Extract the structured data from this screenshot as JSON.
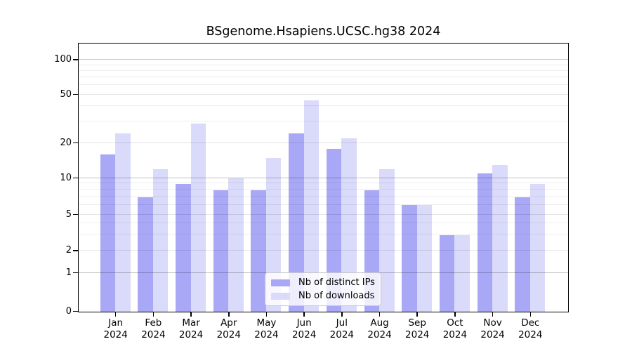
{
  "title": "BSgenome.Hsapiens.UCSC.hg38 2024",
  "chart_data": {
    "type": "bar",
    "title": "BSgenome.Hsapiens.UCSC.hg38 2024",
    "categories": [
      "Jan",
      "Feb",
      "Mar",
      "Apr",
      "May",
      "Jun",
      "Jul",
      "Aug",
      "Sep",
      "Oct",
      "Nov",
      "Dec"
    ],
    "x_year_label": "2024",
    "series": [
      {
        "name": "Nb of distinct IPs",
        "color": "#a8a8f6",
        "values": [
          16,
          7,
          9,
          8,
          8,
          24,
          18,
          8,
          6,
          3,
          11,
          7
        ]
      },
      {
        "name": "Nb of downloads",
        "color": "#dadafa",
        "values": [
          24,
          12,
          29,
          10,
          15,
          45,
          22,
          12,
          6,
          3,
          13,
          9
        ]
      }
    ],
    "yscale": "log-like (0,1,2,5,10,20,50,100)",
    "ylim": [
      0,
      140
    ],
    "yticks": [
      {
        "value": 0,
        "label": "0"
      },
      {
        "value": 1,
        "label": "1"
      },
      {
        "value": 2,
        "label": "2"
      },
      {
        "value": 5,
        "label": "5"
      },
      {
        "value": 10,
        "label": "10"
      },
      {
        "value": 20,
        "label": "20"
      },
      {
        "value": 50,
        "label": "50"
      },
      {
        "value": 100,
        "label": "100"
      }
    ],
    "minor_gridlines": [
      3,
      4,
      6,
      7,
      8,
      9,
      30,
      40,
      60,
      70,
      80,
      90
    ],
    "emphasized_gridlines": [
      1,
      10,
      100
    ],
    "grid": true,
    "legend_position": "lower center inside"
  }
}
